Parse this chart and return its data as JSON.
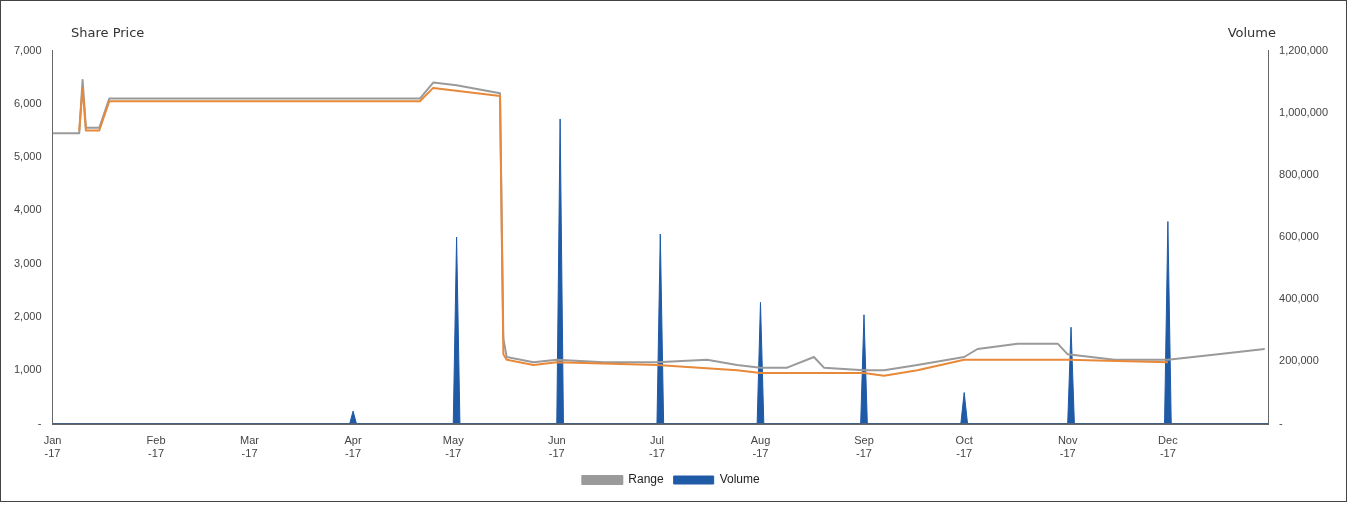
{
  "chart_data": {
    "type": "line",
    "ylabel": "Share Price",
    "y2label": "Volume",
    "legend": "bottom",
    "grid": false,
    "marker": "none",
    "line_style": "solid",
    "xlim": [
      "2017-01-01",
      "2017-12-31"
    ],
    "xticks": [
      {
        "value": "2017-01-01",
        "label": "Jan-17"
      },
      {
        "value": "2017-02-01",
        "label": "Feb-17"
      },
      {
        "value": "2017-03-01",
        "label": "Mar-17"
      },
      {
        "value": "2017-04-01",
        "label": "Apr-17"
      },
      {
        "value": "2017-05-01",
        "label": "May-17"
      },
      {
        "value": "2017-06-01",
        "label": "Jun-17"
      },
      {
        "value": "2017-07-01",
        "label": "Jul-17"
      },
      {
        "value": "2017-08-01",
        "label": "Aug-17"
      },
      {
        "value": "2017-09-01",
        "label": "Sep-17"
      },
      {
        "value": "2017-10-01",
        "label": "Oct-17"
      },
      {
        "value": "2017-11-01",
        "label": "Nov-17"
      },
      {
        "value": "2017-12-01",
        "label": "Dec-17"
      }
    ],
    "ylim": [
      0,
      7000
    ],
    "yticks": [
      {
        "value": 0,
        "label": "-"
      },
      {
        "value": 1000,
        "label": "1,000"
      },
      {
        "value": 2000,
        "label": "2,000"
      },
      {
        "value": 3000,
        "label": "3,000"
      },
      {
        "value": 4000,
        "label": "4,000"
      },
      {
        "value": 5000,
        "label": "5,000"
      },
      {
        "value": 6000,
        "label": "6,000"
      },
      {
        "value": 7000,
        "label": "7,000"
      }
    ],
    "y2lim": [
      0,
      1200000
    ],
    "y2ticks": [
      {
        "value": 0,
        "label": "-"
      },
      {
        "value": 200000,
        "label": "200,000"
      },
      {
        "value": 400000,
        "label": "400,000"
      },
      {
        "value": 600000,
        "label": "600,000"
      },
      {
        "value": 800000,
        "label": "800,000"
      },
      {
        "value": 1000000,
        "label": "1,000,000"
      },
      {
        "value": 1200000,
        "label": "1,200,000"
      }
    ],
    "series": [
      {
        "name": "Volume",
        "type": "area",
        "axis": "y2",
        "color": "#1f5aa6",
        "x": [
          "2017-01-01",
          "2017-03-31",
          "2017-04-01",
          "2017-04-02",
          "2017-05-01",
          "2017-05-02",
          "2017-05-03",
          "2017-06-01",
          "2017-06-02",
          "2017-06-03",
          "2017-07-01",
          "2017-07-02",
          "2017-07-03",
          "2017-07-31",
          "2017-08-01",
          "2017-08-02",
          "2017-08-31",
          "2017-09-01",
          "2017-09-02",
          "2017-09-30",
          "2017-10-01",
          "2017-10-02",
          "2017-11-01",
          "2017-11-02",
          "2017-11-03",
          "2017-11-30",
          "2017-12-01",
          "2017-12-02",
          "2017-12-31"
        ],
        "values": [
          0,
          0,
          40000,
          0,
          0,
          600000,
          0,
          0,
          980000,
          0,
          0,
          610000,
          0,
          0,
          390000,
          0,
          0,
          350000,
          0,
          0,
          100000,
          0,
          0,
          310000,
          0,
          0,
          650000,
          0,
          0
        ]
      },
      {
        "name": "Range",
        "color": "#9a9a9a",
        "x": [
          "2017-01-01",
          "2017-01-09",
          "2017-01-10",
          "2017-01-11",
          "2017-01-15",
          "2017-01-18",
          "2017-04-21",
          "2017-04-25",
          "2017-05-02",
          "2017-05-15",
          "2017-05-16",
          "2017-05-17",
          "2017-05-25",
          "2017-06-01",
          "2017-06-15",
          "2017-07-01",
          "2017-07-16",
          "2017-07-25",
          "2017-08-01",
          "2017-08-09",
          "2017-08-17",
          "2017-08-20",
          "2017-09-01",
          "2017-09-07",
          "2017-09-17",
          "2017-10-01",
          "2017-10-05",
          "2017-10-17",
          "2017-10-29",
          "2017-11-01",
          "2017-11-15",
          "2017-12-01",
          "2017-12-16",
          "2017-12-30"
        ],
        "values": [
          5450,
          5450,
          6450,
          5550,
          5550,
          6100,
          6100,
          6400,
          6350,
          6200,
          1600,
          1250,
          1150,
          1200,
          1150,
          1150,
          1200,
          1100,
          1050,
          1050,
          1250,
          1050,
          1000,
          1000,
          1100,
          1250,
          1400,
          1500,
          1500,
          1300,
          1200,
          1200,
          1300,
          1400
        ]
      },
      {
        "color": "#e8893a",
        "x": [
          "2017-01-09",
          "2017-01-10",
          "2017-01-11",
          "2017-01-15",
          "2017-01-18",
          "2017-04-21",
          "2017-04-25",
          "2017-05-15",
          "2017-05-16",
          "2017-05-17",
          "2017-05-25",
          "2017-06-01",
          "2017-07-01",
          "2017-07-25",
          "2017-08-01",
          "2017-08-09",
          "2017-09-01",
          "2017-09-07",
          "2017-09-17",
          "2017-10-01",
          "2017-11-01",
          "2017-12-01"
        ],
        "values": [
          5500,
          6300,
          5500,
          5500,
          6050,
          6050,
          6300,
          6150,
          1300,
          1200,
          1100,
          1150,
          1100,
          1000,
          950,
          950,
          950,
          900,
          1000,
          1200,
          1200,
          1150
        ]
      }
    ]
  }
}
